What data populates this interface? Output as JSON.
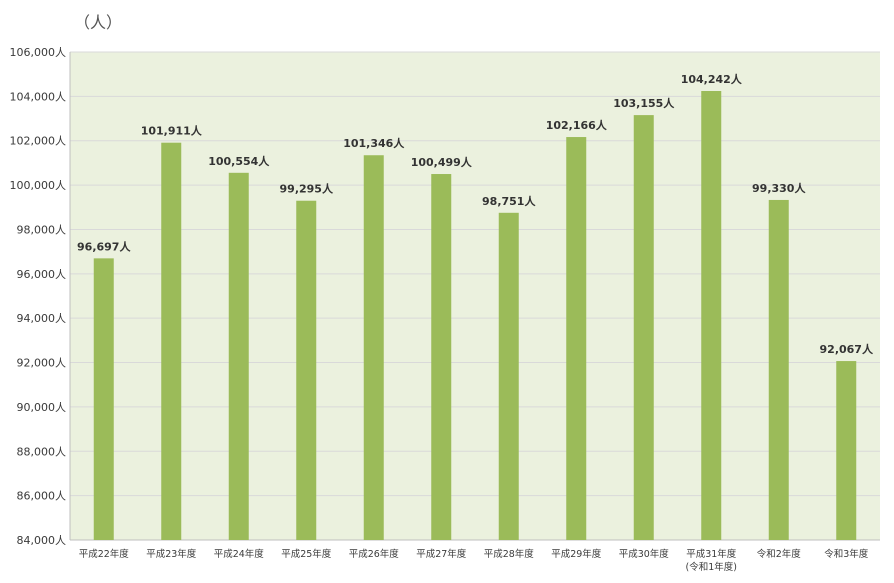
{
  "chart_data": {
    "type": "bar",
    "unit_label": "（人）",
    "categories": [
      [
        "平成22年度"
      ],
      [
        "平成23年度"
      ],
      [
        "平成24年度"
      ],
      [
        "平成25年度"
      ],
      [
        "平成26年度"
      ],
      [
        "平成27年度"
      ],
      [
        "平成28年度"
      ],
      [
        "平成29年度"
      ],
      [
        "平成30年度"
      ],
      [
        "平成31年度",
        "(令和1年度)"
      ],
      [
        "令和2年度"
      ],
      [
        "令和3年度"
      ]
    ],
    "values": [
      96697,
      101911,
      100554,
      99295,
      101346,
      100499,
      98751,
      102166,
      103155,
      104242,
      99330,
      92067
    ],
    "data_labels": [
      "96,697人",
      "101,911人",
      "100,554人",
      "99,295人",
      "101,346人",
      "100,499人",
      "98,751人",
      "102,166人",
      "103,155人",
      "104,242人",
      "99,330人",
      "92,067人"
    ],
    "ylim": [
      84000,
      106000
    ],
    "y_ticks": [
      84000,
      86000,
      88000,
      90000,
      92000,
      94000,
      96000,
      98000,
      100000,
      102000,
      104000,
      106000
    ],
    "y_tick_labels": [
      "84,000人",
      "86,000人",
      "88,000人",
      "90,000人",
      "92,000人",
      "94,000人",
      "96,000人",
      "98,000人",
      "100,000人",
      "102,000人",
      "104,000人",
      "106,000人"
    ],
    "grid": true,
    "legend": "none",
    "colors": {
      "bar": "#9BBB59",
      "plot_background": "#EBF1DE",
      "gridline": "#D9D9D9",
      "axis": "#BFBFBF"
    }
  }
}
